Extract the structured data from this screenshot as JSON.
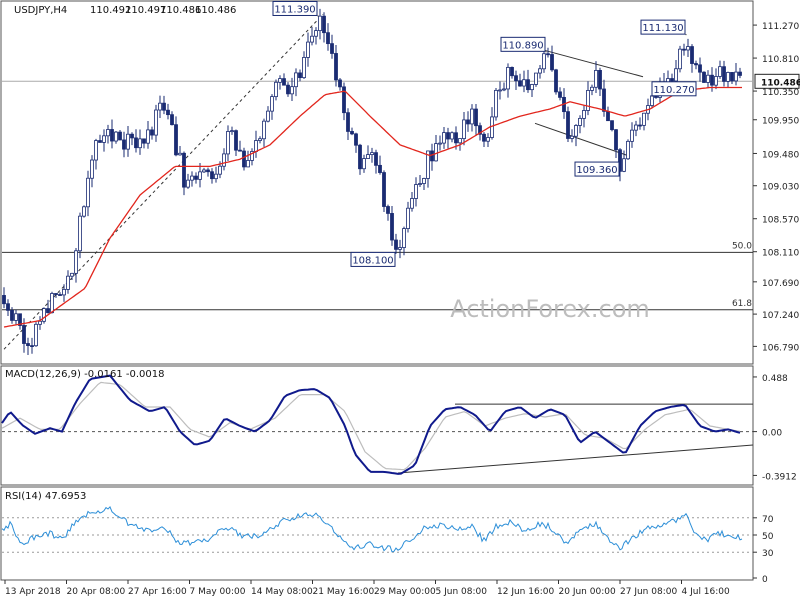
{
  "chart_data": [
    {
      "type": "candlestick",
      "title": "USDJPY,H4",
      "ohlc": {
        "open": "110.492",
        "high": "110.497",
        "low": "110.486",
        "close": "110.486"
      },
      "current_price": "110.486",
      "ylim": [
        106.6,
        111.55
      ],
      "price_ticks": [
        "111.270",
        "110.810",
        "110.350",
        "109.950",
        "109.480",
        "109.030",
        "108.570",
        "108.110",
        "107.690",
        "107.240",
        "106.790"
      ],
      "x_ticks": [
        "13 Apr 2018",
        "20 Apr 08:00",
        "27 Apr 16:00",
        "7 May 00:00",
        "14 May 08:00",
        "21 May 16:00",
        "29 May 00:00",
        "5 Jun 08:00",
        "12 Jun 16:00",
        "20 Jun 00:00",
        "27 Jun 08:00",
        "4 Jul 16:00"
      ],
      "price_path": [
        [
          0,
          107.5
        ],
        [
          10,
          107.3
        ],
        [
          22,
          106.95
        ],
        [
          33,
          106.85
        ],
        [
          45,
          107.3
        ],
        [
          60,
          107.6
        ],
        [
          72,
          107.9
        ],
        [
          82,
          108.7
        ],
        [
          90,
          109.3
        ],
        [
          100,
          109.7
        ],
        [
          115,
          109.8
        ],
        [
          130,
          109.6
        ],
        [
          150,
          109.8
        ],
        [
          165,
          110.2
        ],
        [
          175,
          109.6
        ],
        [
          185,
          109.1
        ],
        [
          200,
          109.2
        ],
        [
          215,
          109.0
        ],
        [
          230,
          109.8
        ],
        [
          245,
          109.3
        ],
        [
          262,
          109.7
        ],
        [
          278,
          110.6
        ],
        [
          292,
          110.3
        ],
        [
          304,
          110.8
        ],
        [
          318,
          111.39
        ],
        [
          332,
          110.8
        ],
        [
          345,
          110.0
        ],
        [
          360,
          109.3
        ],
        [
          375,
          109.4
        ],
        [
          388,
          108.6
        ],
        [
          396,
          108.1
        ],
        [
          410,
          108.7
        ],
        [
          425,
          109.3
        ],
        [
          440,
          109.7
        ],
        [
          458,
          109.7
        ],
        [
          472,
          110.0
        ],
        [
          485,
          109.5
        ],
        [
          495,
          110.2
        ],
        [
          510,
          110.6
        ],
        [
          522,
          110.4
        ],
        [
          540,
          110.7
        ],
        [
          546,
          110.89
        ],
        [
          556,
          110.3
        ],
        [
          570,
          109.7
        ],
        [
          583,
          110.1
        ],
        [
          595,
          110.6
        ],
        [
          608,
          109.9
        ],
        [
          620,
          109.36
        ],
        [
          630,
          109.6
        ],
        [
          645,
          110.1
        ],
        [
          656,
          110.27
        ],
        [
          668,
          110.5
        ],
        [
          680,
          110.8
        ],
        [
          686,
          111.13
        ],
        [
          695,
          110.6
        ],
        [
          705,
          110.4
        ],
        [
          720,
          110.6
        ],
        [
          732,
          110.5
        ],
        [
          742,
          110.486
        ]
      ],
      "ma_path": [
        [
          0,
          107.05
        ],
        [
          40,
          107.15
        ],
        [
          85,
          107.6
        ],
        [
          110,
          108.3
        ],
        [
          140,
          108.9
        ],
        [
          175,
          109.3
        ],
        [
          210,
          109.3
        ],
        [
          240,
          109.4
        ],
        [
          270,
          109.6
        ],
        [
          300,
          110.0
        ],
        [
          325,
          110.3
        ],
        [
          345,
          110.35
        ],
        [
          370,
          110.0
        ],
        [
          400,
          109.6
        ],
        [
          430,
          109.45
        ],
        [
          460,
          109.6
        ],
        [
          490,
          109.85
        ],
        [
          520,
          110.0
        ],
        [
          550,
          110.1
        ],
        [
          570,
          110.2
        ],
        [
          600,
          110.1
        ],
        [
          625,
          110.0
        ],
        [
          650,
          110.1
        ],
        [
          680,
          110.35
        ],
        [
          710,
          110.4
        ],
        [
          742,
          110.4
        ]
      ],
      "annotations": [
        {
          "label": "111.390",
          "x": 318,
          "value": 111.39,
          "side": "left"
        },
        {
          "label": "108.100",
          "x": 396,
          "value": 108.1,
          "side": "left"
        },
        {
          "label": "110.890",
          "x": 546,
          "value": 110.89,
          "side": "left"
        },
        {
          "label": "109.360",
          "x": 620,
          "value": 109.36,
          "side": "left"
        },
        {
          "label": "110.270",
          "x": 652,
          "value": 110.27,
          "side": "right"
        },
        {
          "label": "111.130",
          "x": 686,
          "value": 111.13,
          "side": "left"
        }
      ],
      "fib_levels": [
        {
          "label": "50.0",
          "value": 108.1
        },
        {
          "label": "61.8",
          "value": 107.3
        }
      ]
    },
    {
      "type": "line",
      "title": "MACD(12,26,9) -0.0161 -0.0018",
      "ylim": [
        -0.45,
        0.55
      ],
      "y_ticks": [
        "0.488",
        "0.00",
        "-0.3912"
      ],
      "tick_values": [
        0.488,
        0.0,
        -0.3912
      ],
      "macd_path": [
        [
          0,
          0.05
        ],
        [
          10,
          0.18
        ],
        [
          22,
          0.06
        ],
        [
          35,
          -0.02
        ],
        [
          50,
          0.03
        ],
        [
          62,
          0.0
        ],
        [
          75,
          0.25
        ],
        [
          90,
          0.47
        ],
        [
          110,
          0.5
        ],
        [
          130,
          0.28
        ],
        [
          150,
          0.18
        ],
        [
          165,
          0.22
        ],
        [
          180,
          0.0
        ],
        [
          195,
          -0.12
        ],
        [
          210,
          -0.08
        ],
        [
          225,
          0.12
        ],
        [
          240,
          0.05
        ],
        [
          255,
          0.0
        ],
        [
          270,
          0.1
        ],
        [
          285,
          0.32
        ],
        [
          300,
          0.37
        ],
        [
          315,
          0.38
        ],
        [
          330,
          0.3
        ],
        [
          345,
          0.05
        ],
        [
          355,
          -0.2
        ],
        [
          370,
          -0.36
        ],
        [
          385,
          -0.36
        ],
        [
          400,
          -0.38
        ],
        [
          415,
          -0.3
        ],
        [
          430,
          0.05
        ],
        [
          445,
          0.2
        ],
        [
          460,
          0.22
        ],
        [
          475,
          0.15
        ],
        [
          490,
          0.0
        ],
        [
          505,
          0.18
        ],
        [
          520,
          0.22
        ],
        [
          535,
          0.12
        ],
        [
          550,
          0.2
        ],
        [
          565,
          0.15
        ],
        [
          580,
          -0.1
        ],
        [
          595,
          0.0
        ],
        [
          610,
          -0.1
        ],
        [
          625,
          -0.2
        ],
        [
          640,
          0.05
        ],
        [
          655,
          0.18
        ],
        [
          670,
          0.22
        ],
        [
          685,
          0.24
        ],
        [
          700,
          0.05
        ],
        [
          715,
          0.0
        ],
        [
          728,
          0.02
        ],
        [
          742,
          -0.0161
        ]
      ],
      "signal_path": [
        [
          0,
          0.02
        ],
        [
          20,
          0.12
        ],
        [
          40,
          0.02
        ],
        [
          60,
          0.02
        ],
        [
          80,
          0.25
        ],
        [
          100,
          0.44
        ],
        [
          120,
          0.42
        ],
        [
          145,
          0.22
        ],
        [
          170,
          0.22
        ],
        [
          190,
          0.02
        ],
        [
          210,
          -0.05
        ],
        [
          230,
          0.08
        ],
        [
          250,
          0.02
        ],
        [
          275,
          0.12
        ],
        [
          300,
          0.33
        ],
        [
          325,
          0.33
        ],
        [
          345,
          0.18
        ],
        [
          365,
          -0.18
        ],
        [
          385,
          -0.33
        ],
        [
          405,
          -0.34
        ],
        [
          425,
          -0.15
        ],
        [
          445,
          0.13
        ],
        [
          465,
          0.18
        ],
        [
          485,
          0.05
        ],
        [
          505,
          0.12
        ],
        [
          525,
          0.16
        ],
        [
          545,
          0.13
        ],
        [
          565,
          0.16
        ],
        [
          585,
          -0.03
        ],
        [
          605,
          -0.06
        ],
        [
          625,
          -0.16
        ],
        [
          645,
          0.02
        ],
        [
          665,
          0.15
        ],
        [
          690,
          0.2
        ],
        [
          710,
          0.05
        ],
        [
          742,
          -0.0018
        ]
      ],
      "trendline_level": 0.245
    },
    {
      "type": "line",
      "title": "RSI(14) 47.6953",
      "ylim": [
        0,
        100
      ],
      "y_ticks": [
        "70",
        "50",
        "30",
        "0"
      ],
      "tick_values": [
        70,
        50,
        30,
        0
      ],
      "rsi_path": [
        [
          0,
          55
        ],
        [
          10,
          62
        ],
        [
          22,
          40
        ],
        [
          35,
          48
        ],
        [
          50,
          52
        ],
        [
          62,
          44
        ],
        [
          75,
          64
        ],
        [
          90,
          76
        ],
        [
          110,
          80
        ],
        [
          130,
          62
        ],
        [
          150,
          55
        ],
        [
          165,
          58
        ],
        [
          180,
          40
        ],
        [
          195,
          42
        ],
        [
          210,
          44
        ],
        [
          225,
          60
        ],
        [
          240,
          50
        ],
        [
          255,
          48
        ],
        [
          270,
          58
        ],
        [
          285,
          68
        ],
        [
          300,
          72
        ],
        [
          315,
          74
        ],
        [
          330,
          62
        ],
        [
          345,
          40
        ],
        [
          355,
          35
        ],
        [
          370,
          40
        ],
        [
          385,
          35
        ],
        [
          396,
          32
        ],
        [
          410,
          44
        ],
        [
          425,
          58
        ],
        [
          440,
          62
        ],
        [
          458,
          56
        ],
        [
          472,
          60
        ],
        [
          485,
          42
        ],
        [
          495,
          60
        ],
        [
          510,
          66
        ],
        [
          522,
          56
        ],
        [
          540,
          62
        ],
        [
          550,
          60
        ],
        [
          565,
          40
        ],
        [
          583,
          56
        ],
        [
          595,
          64
        ],
        [
          608,
          44
        ],
        [
          620,
          35
        ],
        [
          630,
          44
        ],
        [
          645,
          56
        ],
        [
          656,
          60
        ],
        [
          668,
          64
        ],
        [
          680,
          70
        ],
        [
          686,
          72
        ],
        [
          695,
          52
        ],
        [
          705,
          44
        ],
        [
          720,
          52
        ],
        [
          732,
          48
        ],
        [
          742,
          47.6953
        ]
      ],
      "levels": [
        70,
        50,
        30
      ]
    }
  ],
  "watermark": "ActionForex.com",
  "colors": {
    "candle": "#1a2b72",
    "ma": "#e2261d",
    "macd": "#101a8c",
    "signal": "#bdbdbd",
    "rsi": "#2d8fd8",
    "grid": "#cccccc",
    "text": "#222222"
  }
}
